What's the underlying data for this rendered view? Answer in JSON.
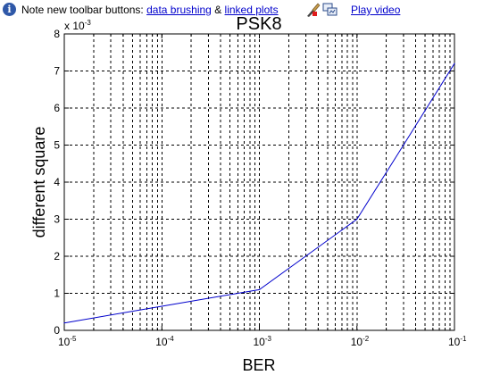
{
  "infobar": {
    "icon": "info-icon",
    "text_before": "Note new toolbar buttons:",
    "link_data_brushing": "data brushing",
    "ampersand": "&",
    "link_linked_plots": "linked plots",
    "brush_icon": "data-brush-icon",
    "linked_icon": "linked-plots-icon",
    "play_video": "Play video"
  },
  "chart_data": {
    "type": "line",
    "title": "PSK8",
    "xlabel": "BER",
    "ylabel": "different square",
    "x_scale": "log",
    "xlim": [
      1e-05,
      0.1
    ],
    "ylim": [
      0,
      8
    ],
    "y_multiplier_label": "x 10",
    "y_multiplier_exponent": "-3",
    "x_ticks": [
      {
        "base": "10",
        "exp": "-5"
      },
      {
        "base": "10",
        "exp": "-4"
      },
      {
        "base": "10",
        "exp": "-3"
      },
      {
        "base": "10",
        "exp": "-2"
      },
      {
        "base": "10",
        "exp": "-1"
      }
    ],
    "y_ticks": [
      "0",
      "1",
      "2",
      "3",
      "4",
      "5",
      "6",
      "7",
      "8"
    ],
    "grid": true,
    "grid_style": "dashed",
    "line_color": "#0000cc",
    "series": [
      {
        "x": [
          1e-05,
          0.0001,
          0.001,
          0.01,
          0.03,
          0.1
        ],
        "y": [
          0.2,
          0.65,
          1.1,
          3.0,
          5.0,
          7.2
        ]
      }
    ]
  }
}
